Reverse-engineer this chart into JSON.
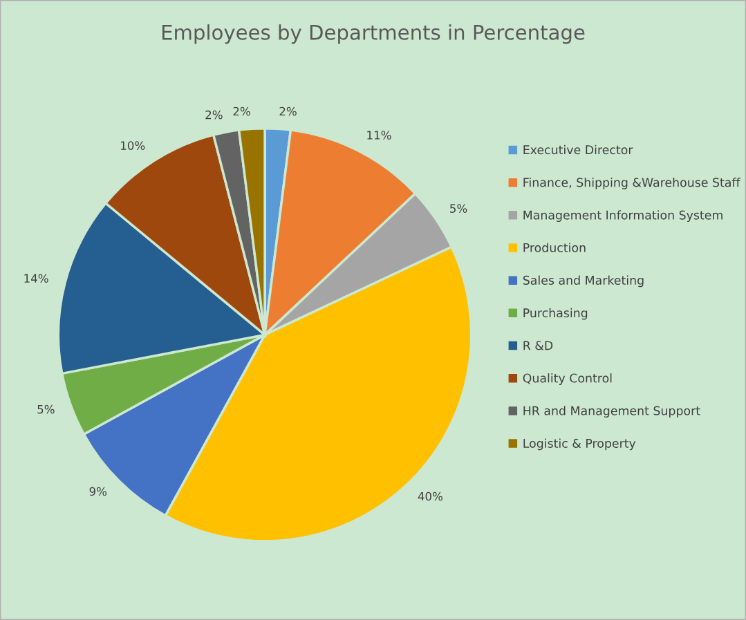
{
  "chart_data": {
    "type": "pie",
    "title": "Employees by Departments in Percentage",
    "categories": [
      "Executive Director",
      "Finance, Shipping &Warehouse Staff",
      "Management Information System",
      "Production",
      "Sales and Marketing",
      "Purchasing",
      "R &D",
      "Quality Control",
      "HR and Management Support",
      "Logistic & Property"
    ],
    "values": [
      2,
      11,
      5,
      40,
      9,
      5,
      14,
      10,
      2,
      2
    ],
    "value_labels": [
      "2%",
      "11%",
      "5%",
      "40%",
      "9%",
      "5%",
      "14%",
      "10%",
      "2%",
      "2%"
    ],
    "colors": [
      "#5b9bd5",
      "#ed7d31",
      "#a5a5a5",
      "#ffc000",
      "#4472c4",
      "#70ad47",
      "#255e91",
      "#9e480e",
      "#636363",
      "#997300"
    ],
    "legend": "right"
  }
}
